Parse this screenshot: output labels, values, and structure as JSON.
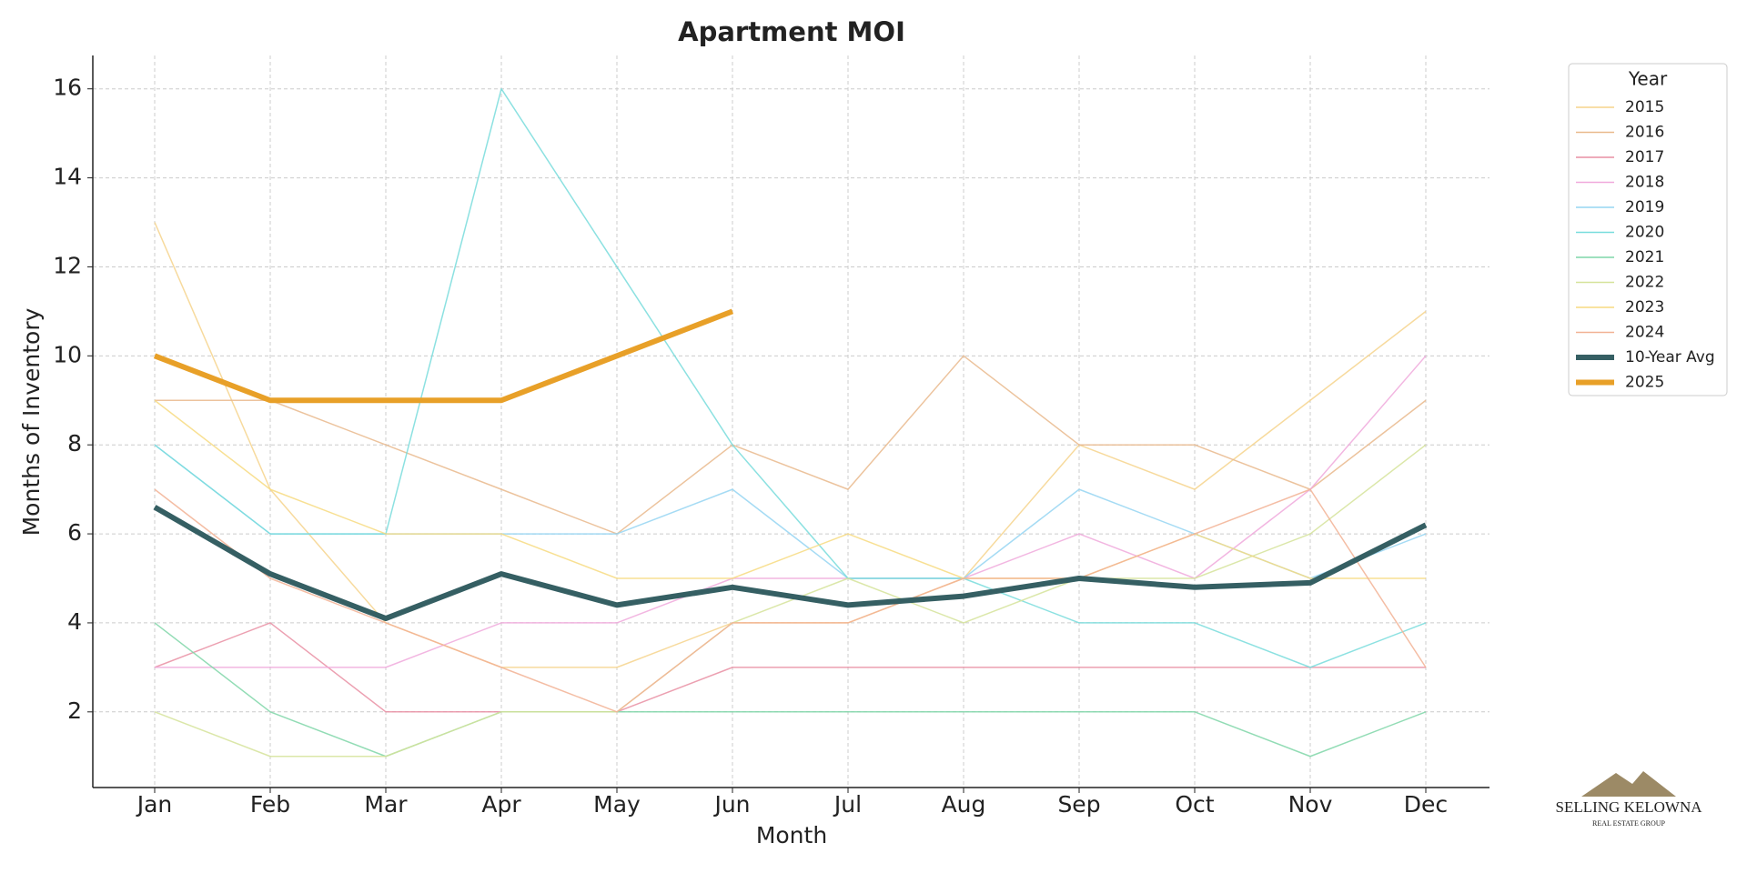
{
  "chart_data": {
    "type": "line",
    "title": "Apartment MOI",
    "x_label": "Month",
    "y_label": "Months of Inventory",
    "categories": [
      "Jan",
      "Feb",
      "Mar",
      "Apr",
      "May",
      "Jun",
      "Jul",
      "Aug",
      "Sep",
      "Oct",
      "Nov",
      "Dec"
    ],
    "ylim": [
      0.3,
      16.75
    ],
    "yticks": [
      2,
      4,
      6,
      8,
      10,
      12,
      14,
      16
    ],
    "grid": true,
    "legend": "outside-top-right",
    "legend_title": "Year",
    "series": [
      {
        "name": "2015",
        "color": "#f6d48c",
        "width": 1.5,
        "values": [
          13,
          7,
          4,
          3,
          3,
          4,
          4,
          5,
          8,
          7,
          9,
          11
        ]
      },
      {
        "name": "2016",
        "color": "#e9b98c",
        "width": 1.5,
        "values": [
          9,
          9,
          8,
          7,
          6,
          8,
          7,
          10,
          8,
          8,
          7,
          9
        ]
      },
      {
        "name": "2017",
        "color": "#e98fa3",
        "width": 1.5,
        "values": [
          3,
          4,
          2,
          2,
          2,
          3,
          3,
          3,
          3,
          3,
          3,
          3
        ]
      },
      {
        "name": "2018",
        "color": "#f0a9dc",
        "width": 1.5,
        "values": [
          3,
          3,
          3,
          4,
          4,
          5,
          5,
          5,
          6,
          5,
          7,
          10
        ]
      },
      {
        "name": "2019",
        "color": "#95d5f2",
        "width": 1.5,
        "values": [
          8,
          6,
          6,
          6,
          6,
          7,
          5,
          5,
          7,
          6,
          5,
          6
        ]
      },
      {
        "name": "2020",
        "color": "#78dcdc",
        "width": 1.5,
        "values": [
          8,
          6,
          6,
          16,
          12,
          8,
          5,
          5,
          4,
          4,
          3,
          4
        ]
      },
      {
        "name": "2021",
        "color": "#7fd6a8",
        "width": 1.5,
        "values": [
          4,
          2,
          1,
          2,
          2,
          2,
          2,
          2,
          2,
          2,
          1,
          2
        ]
      },
      {
        "name": "2022",
        "color": "#d5e39a",
        "width": 1.5,
        "values": [
          2,
          1,
          1,
          2,
          2,
          4,
          5,
          4,
          5,
          5,
          6,
          8
        ]
      },
      {
        "name": "2023",
        "color": "#f7da80",
        "width": 1.5,
        "values": [
          9,
          7,
          6,
          6,
          5,
          5,
          6,
          5,
          5,
          6,
          5,
          5
        ]
      },
      {
        "name": "2024",
        "color": "#f2b294",
        "width": 1.5,
        "values": [
          7,
          5,
          4,
          3,
          2,
          4,
          4,
          5,
          5,
          6,
          7,
          3
        ]
      },
      {
        "name": "10-Year Avg",
        "color": "#355f63",
        "width": 6,
        "values": [
          6.6,
          5.1,
          4.1,
          5.1,
          4.4,
          4.8,
          4.4,
          4.6,
          5.0,
          4.8,
          4.9,
          6.2
        ]
      },
      {
        "name": "2025",
        "color": "#e8a028",
        "width": 6,
        "values": [
          10,
          9,
          9,
          9,
          10,
          11,
          null,
          null,
          null,
          null,
          null,
          null
        ]
      }
    ]
  },
  "logo": {
    "name": "SELLING KELOWNA",
    "tagline": "REAL ESTATE GROUP"
  }
}
